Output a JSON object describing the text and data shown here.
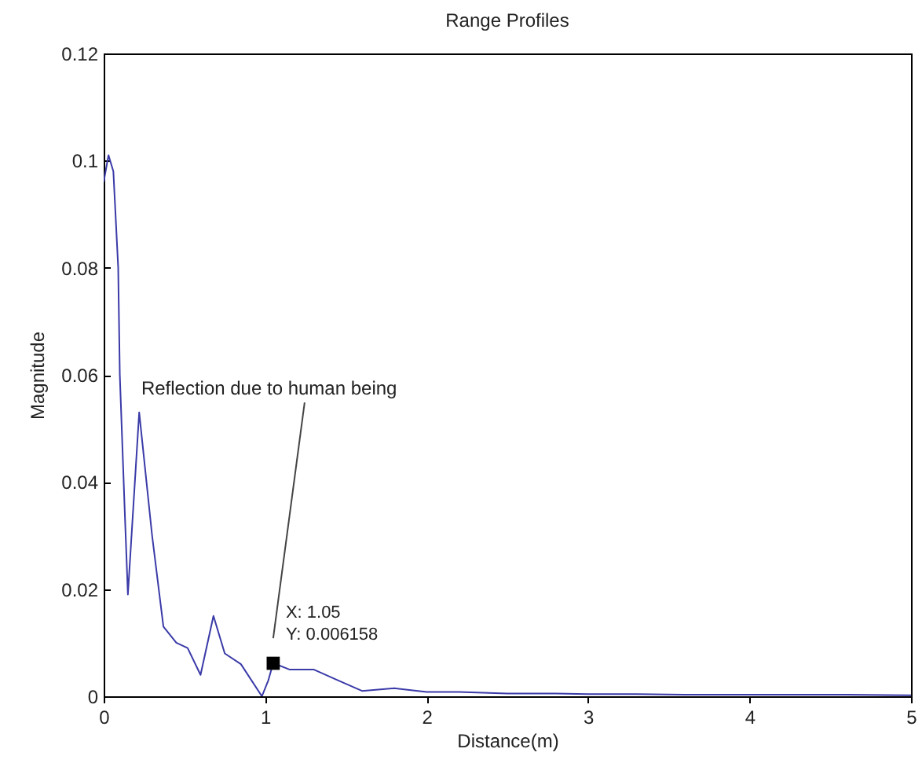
{
  "chart_data": {
    "type": "line",
    "title": "Range Profiles",
    "xlabel": "Distance(m)",
    "ylabel": "Magnitude",
    "x": [
      0,
      0.03,
      0.06,
      0.09,
      0.1,
      0.13,
      0.15,
      0.22,
      0.3,
      0.37,
      0.45,
      0.52,
      0.6,
      0.68,
      0.75,
      0.85,
      0.98,
      1.02,
      1.05,
      1.15,
      1.3,
      1.45,
      1.6,
      1.8,
      2.0,
      2.2,
      2.5,
      2.8,
      3.0,
      3.3,
      3.6,
      4.0,
      4.3,
      4.6,
      5.0
    ],
    "series": [
      {
        "color": "#3a3aa8",
        "values": [
          0.096,
          0.101,
          0.098,
          0.08,
          0.06,
          0.035,
          0.019,
          0.053,
          0.03,
          0.013,
          0.01,
          0.009,
          0.004,
          0.015,
          0.008,
          0.006,
          0.0,
          0.003,
          0.0062,
          0.005,
          0.005,
          0.003,
          0.001,
          0.0015,
          0.0008,
          0.0008,
          0.0005,
          0.0005,
          0.0004,
          0.0004,
          0.0003,
          0.0003,
          0.0003,
          0.0003,
          0.0002
        ]
      }
    ],
    "annotations": [
      "Reflection due to human being",
      {
        "text": "X: 1.05",
        "x": 1.05,
        "y": 0.006158
      },
      {
        "text": "Y: 0.006158",
        "x": 1.05,
        "y": 0.006158
      }
    ],
    "xlim": [
      0,
      5
    ],
    "xticks": [
      0,
      1,
      2,
      3,
      4,
      5
    ],
    "ylim": [
      0,
      0.12
    ],
    "yticks": [
      0,
      0.02,
      0.04,
      0.06,
      0.08,
      0.1,
      0.12
    ],
    "grid": false,
    "marker": "none",
    "line_style": "solid"
  }
}
